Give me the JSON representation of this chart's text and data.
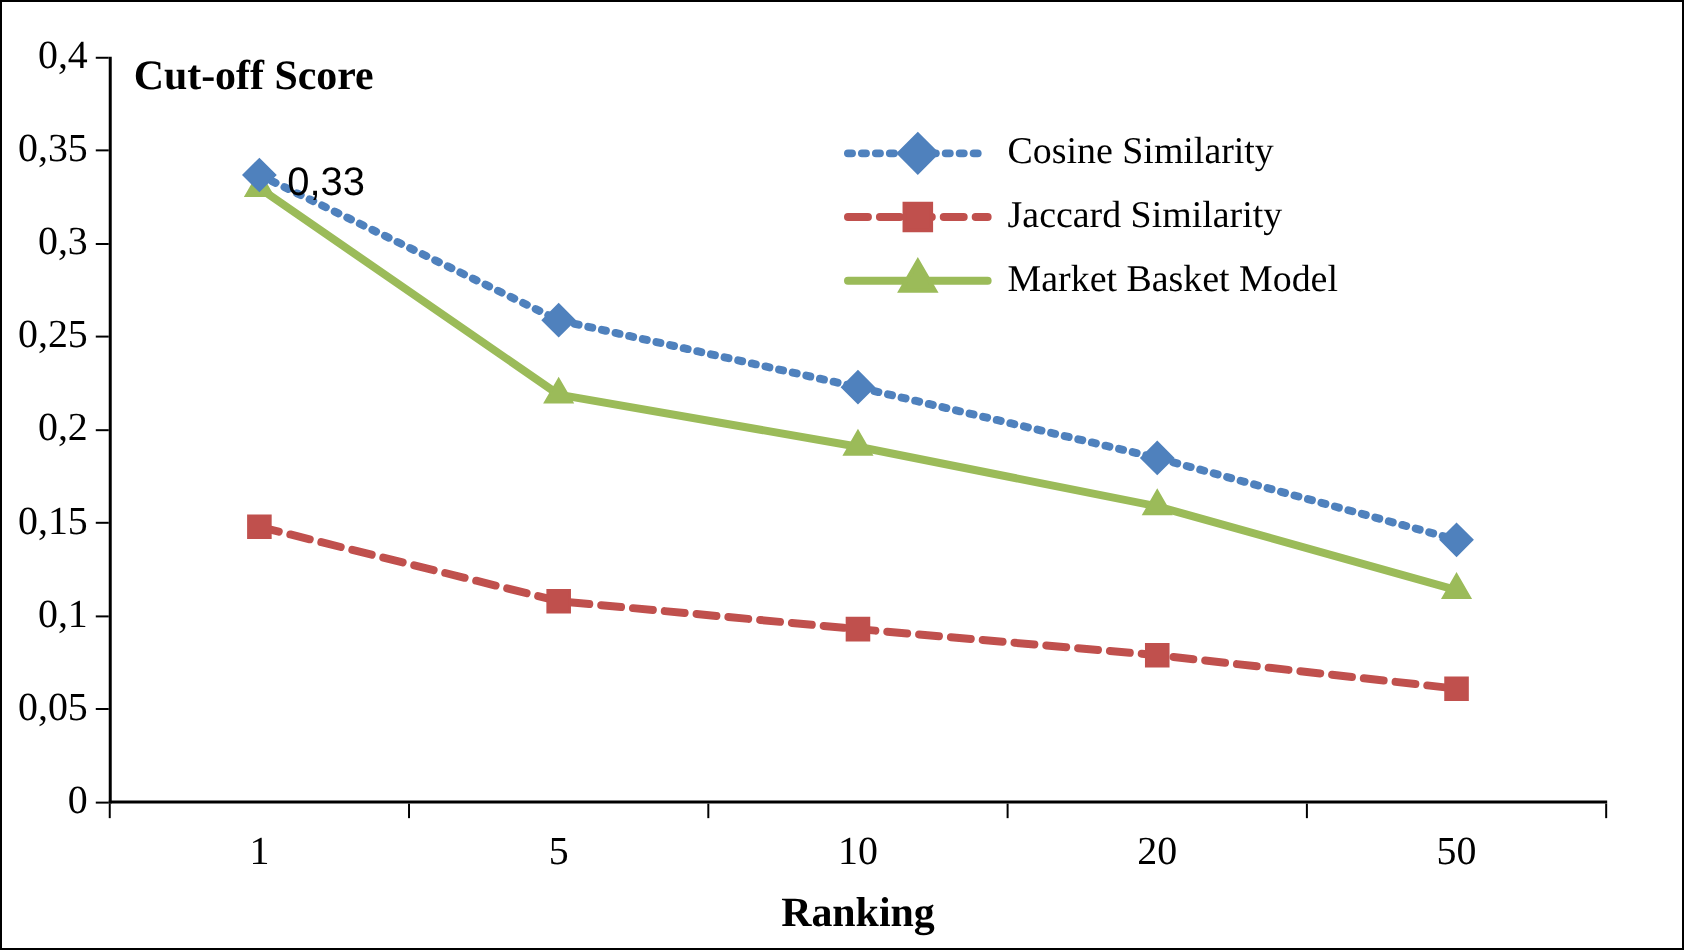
{
  "chart_data": {
    "type": "line",
    "title": "Cut-off Score",
    "xlabel": "Ranking",
    "categories": [
      "1",
      "5",
      "10",
      "20",
      "50"
    ],
    "series": [
      {
        "name": "Cosine Similarity",
        "color": "#4f81bd",
        "marker": "diamond",
        "line_style": "dotted",
        "values": [
          0.337,
          0.259,
          0.223,
          0.185,
          0.141
        ]
      },
      {
        "name": "Jaccard Similarity",
        "color": "#c0504d",
        "marker": "square",
        "line_style": "dashed",
        "values": [
          0.148,
          0.108,
          0.093,
          0.079,
          0.061
        ]
      },
      {
        "name": "Market Basket Model",
        "color": "#9bbb59",
        "marker": "triangle",
        "line_style": "solid",
        "values": [
          0.33,
          0.219,
          0.191,
          0.159,
          0.114
        ],
        "value_labels": [
          "0,33",
          null,
          null,
          null,
          null
        ]
      }
    ],
    "ylim": [
      0,
      0.4
    ],
    "yticks": [
      {
        "value": 0,
        "label": "0"
      },
      {
        "value": 0.05,
        "label": "0,05"
      },
      {
        "value": 0.1,
        "label": "0,1"
      },
      {
        "value": 0.15,
        "label": "0,15"
      },
      {
        "value": 0.2,
        "label": "0,2"
      },
      {
        "value": 0.25,
        "label": "0,25"
      },
      {
        "value": 0.3,
        "label": "0,3"
      },
      {
        "value": 0.35,
        "label": "0,35"
      },
      {
        "value": 0.4,
        "label": "0,4"
      }
    ],
    "grid": false,
    "legend": "top right"
  }
}
